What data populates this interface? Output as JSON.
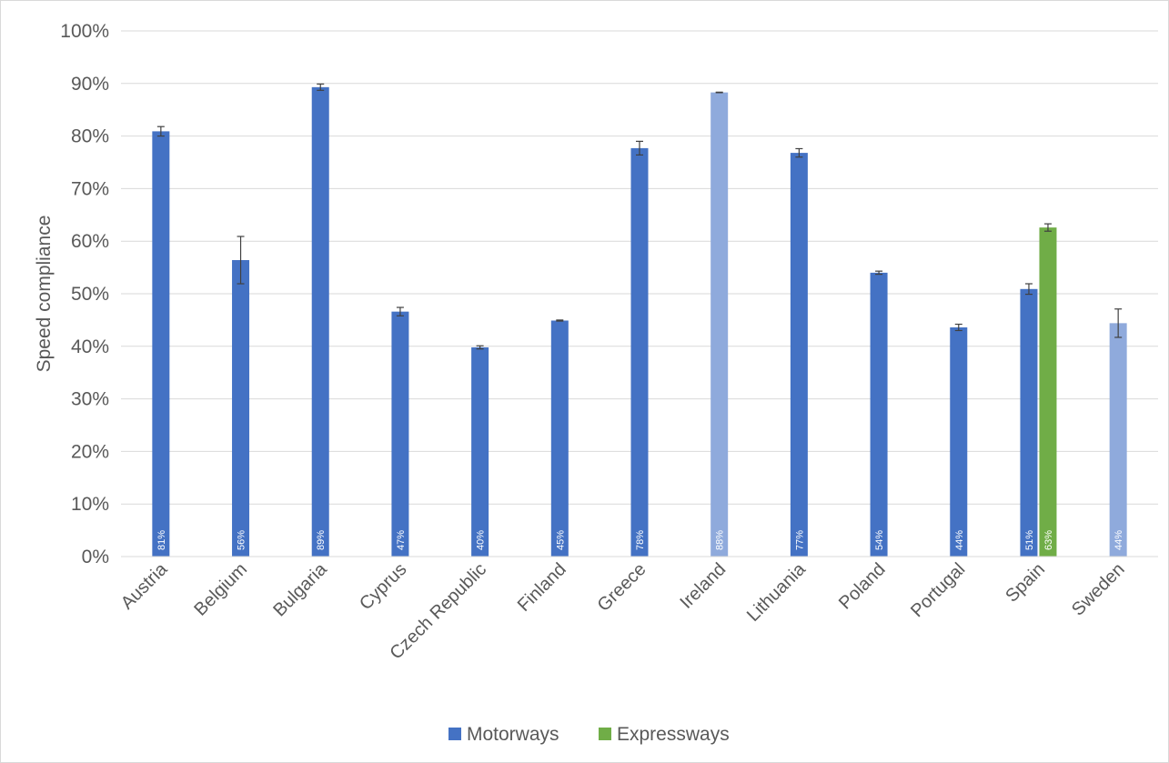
{
  "chart_data": {
    "type": "bar",
    "ylabel": "Speed compliance",
    "xlabel": "",
    "ylim": [
      0,
      1
    ],
    "yticks": [
      "0%",
      "10%",
      "20%",
      "30%",
      "40%",
      "50%",
      "60%",
      "70%",
      "80%",
      "90%",
      "100%"
    ],
    "grid": true,
    "legend_position": "bottom",
    "categories": [
      "Austria",
      "Belgium",
      "Bulgaria",
      "Cyprus",
      "Czech Republic",
      "Finland",
      "Greece",
      "Ireland",
      "Lithuania",
      "Poland",
      "Portugal",
      "Spain",
      "Sweden"
    ],
    "series": [
      {
        "name": "Motorways",
        "color": "#4472c4",
        "values": [
          0.809,
          0.564,
          0.893,
          0.466,
          0.398,
          0.449,
          0.777,
          0.883,
          0.768,
          0.54,
          0.436,
          0.509,
          0.444
        ],
        "labels": [
          "81%",
          "56%",
          "89%",
          "47%",
          "40%",
          "45%",
          "78%",
          "88%",
          "77%",
          "54%",
          "44%",
          "51%",
          "44%"
        ],
        "error": [
          0.009,
          0.045,
          0.006,
          0.008,
          0.003,
          0.001,
          0.013,
          0.0005,
          0.008,
          0.003,
          0.006,
          0.01,
          0.027
        ],
        "light_color": "#8faadc",
        "light_categories": [
          "Ireland",
          "Sweden"
        ]
      },
      {
        "name": "Expressways",
        "color": "#70ad47",
        "values": [
          null,
          null,
          null,
          null,
          null,
          null,
          null,
          null,
          null,
          null,
          null,
          0.626,
          null
        ],
        "labels": [
          null,
          null,
          null,
          null,
          null,
          null,
          null,
          null,
          null,
          null,
          null,
          "63%",
          null
        ],
        "error": [
          null,
          null,
          null,
          null,
          null,
          null,
          null,
          null,
          null,
          null,
          null,
          0.007,
          null
        ]
      }
    ]
  },
  "legend": {
    "items": [
      {
        "label": "Motorways",
        "color": "#4472c4"
      },
      {
        "label": "Expressways",
        "color": "#70ad47"
      }
    ]
  }
}
